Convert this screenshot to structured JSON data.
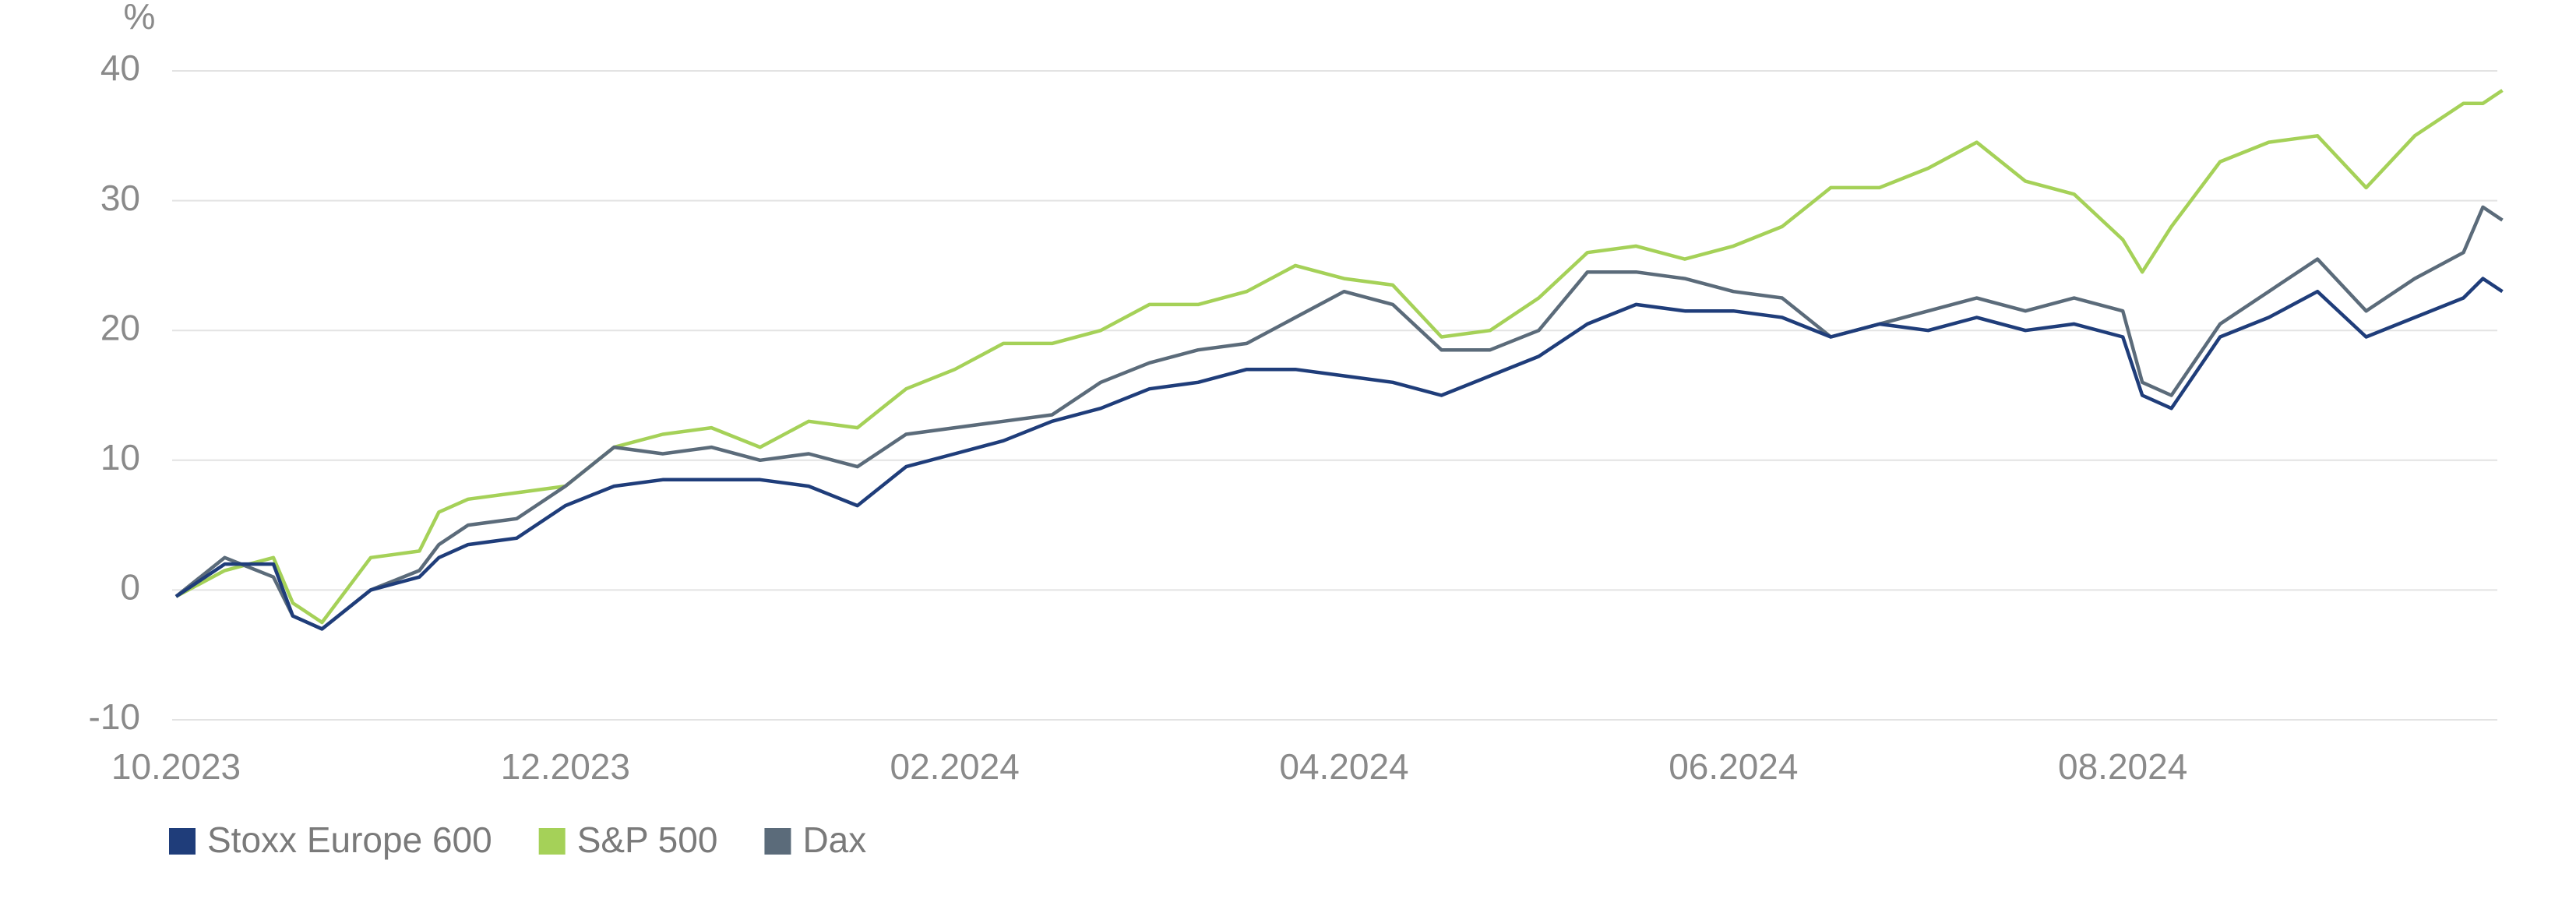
{
  "chart_data": {
    "type": "line",
    "y_unit": "%",
    "x": [
      0,
      0.25,
      0.5,
      0.6,
      0.75,
      1,
      1.25,
      1.35,
      1.5,
      1.75,
      2,
      2.25,
      2.5,
      2.75,
      3,
      3.25,
      3.5,
      3.75,
      4,
      4.25,
      4.5,
      4.75,
      5,
      5.25,
      5.5,
      5.75,
      6,
      6.25,
      6.5,
      6.75,
      7,
      7.25,
      7.5,
      7.75,
      8,
      8.25,
      8.5,
      8.75,
      9,
      9.25,
      9.5,
      9.75,
      10,
      10.1,
      10.25,
      10.5,
      10.75,
      11,
      11.25,
      11.5,
      11.75,
      11.85,
      11.95
    ],
    "series": [
      {
        "name": "Stoxx Europe 600",
        "color": "#1f3d7a",
        "values": [
          -0.5,
          2,
          2,
          -2,
          -3,
          0,
          1,
          2.5,
          3.5,
          4,
          6.5,
          8,
          8.5,
          8.5,
          8.5,
          8,
          6.5,
          9.5,
          10.5,
          11.5,
          13,
          14,
          15.5,
          16,
          17,
          17,
          16.5,
          16,
          15,
          16.5,
          18,
          20.5,
          22,
          21.5,
          21.5,
          21,
          19.5,
          20.5,
          20,
          21,
          20,
          20.5,
          19.5,
          15,
          14,
          19.5,
          21,
          23,
          19.5,
          21,
          22.5,
          24,
          23
        ]
      },
      {
        "name": "S&P 500",
        "color": "#a5d158",
        "values": [
          -0.5,
          1.5,
          2.5,
          -1,
          -2.5,
          2.5,
          3,
          6,
          7,
          7.5,
          8,
          11,
          12,
          12.5,
          11,
          13,
          12.5,
          15.5,
          17,
          19,
          19,
          20,
          22,
          22,
          23,
          25,
          24,
          23.5,
          19.5,
          20,
          22.5,
          26,
          26.5,
          25.5,
          26.5,
          28,
          31,
          31,
          32.5,
          34.5,
          31.5,
          30.5,
          27,
          24.5,
          28,
          33,
          34.5,
          35,
          31,
          35,
          37.5,
          37.5,
          38.5
        ]
      },
      {
        "name": "Dax",
        "color": "#5b6b7a",
        "values": [
          -0.5,
          2.5,
          1,
          -2,
          -3,
          0,
          1.5,
          3.5,
          5,
          5.5,
          8,
          11,
          10.5,
          11,
          10,
          10.5,
          9.5,
          12,
          12.5,
          13,
          13.5,
          16,
          17.5,
          18.5,
          19,
          21,
          23,
          22,
          18.5,
          18.5,
          20,
          24.5,
          24.5,
          24,
          23,
          22.5,
          19.5,
          20.5,
          21.5,
          22.5,
          21.5,
          22.5,
          21.5,
          16,
          15,
          20.5,
          23,
          25.5,
          21.5,
          24,
          26,
          29.5,
          28.5
        ]
      }
    ],
    "xlim": [
      0,
      12
    ],
    "xticks": [
      {
        "value": 0,
        "label": "10.2023"
      },
      {
        "value": 2,
        "label": "12.2023"
      },
      {
        "value": 4,
        "label": "02.2024"
      },
      {
        "value": 6,
        "label": "04.2024"
      },
      {
        "value": 8,
        "label": "06.2024"
      },
      {
        "value": 10,
        "label": "08.2024"
      }
    ],
    "ylim": [
      -10,
      40
    ],
    "yticks": [
      -10,
      0,
      10,
      20,
      30,
      40
    ],
    "grid": true,
    "legend": "bottom-left"
  }
}
